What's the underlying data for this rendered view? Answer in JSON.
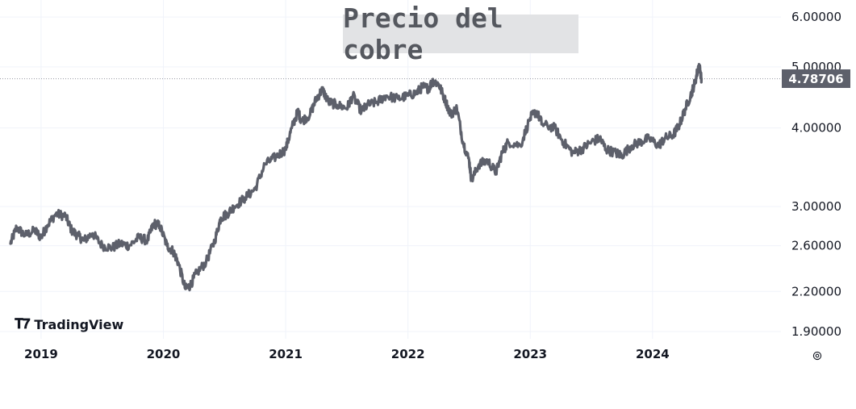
{
  "chart_data": {
    "type": "line",
    "title": "Precio del cobre",
    "y_scale": "log",
    "ylim": [
      1.85,
      6.2
    ],
    "xlim": [
      2018.75,
      2025.05
    ],
    "y_ticks": [
      "6.00000",
      "5.00000",
      "4.00000",
      "3.00000",
      "2.60000",
      "2.20000",
      "1.90000"
    ],
    "x_ticks": [
      "2019",
      "2020",
      "2021",
      "2022",
      "2023",
      "2024"
    ],
    "last_value": "4.78706",
    "grid": true,
    "line_color": "#5d606b",
    "series": [
      {
        "x": [
          2018.75,
          2018.8,
          2018.87,
          2018.95,
          2019.0,
          2019.05,
          2019.12,
          2019.2,
          2019.25,
          2019.3,
          2019.35,
          2019.42,
          2019.5,
          2019.58,
          2019.65,
          2019.72,
          2019.8,
          2019.87,
          2019.92,
          2019.97,
          2020.03,
          2020.08,
          2020.12,
          2020.18,
          2020.22,
          2020.27,
          2020.35,
          2020.42,
          2020.47,
          2020.52,
          2020.58,
          2020.67,
          2020.75,
          2020.83,
          2020.92,
          2021.0,
          2021.05,
          2021.1,
          2021.13,
          2021.2,
          2021.25,
          2021.3,
          2021.35,
          2021.42,
          2021.5,
          2021.55,
          2021.62,
          2021.67,
          2021.75,
          2021.82,
          2021.92,
          2022.0,
          2022.07,
          2022.12,
          2022.17,
          2022.2,
          2022.25,
          2022.3,
          2022.35,
          2022.4,
          2022.45,
          2022.5,
          2022.52,
          2022.58,
          2022.65,
          2022.72,
          2022.77,
          2022.82,
          2022.92,
          2023.0,
          2023.05,
          2023.1,
          2023.2,
          2023.27,
          2023.35,
          2023.42,
          2023.5,
          2023.57,
          2023.62,
          2023.7,
          2023.75,
          2023.83,
          2023.9,
          2023.97,
          2024.05,
          2024.1,
          2024.17,
          2024.22,
          2024.27,
          2024.32,
          2024.35,
          2024.38,
          2024.4
        ],
        "values": [
          2.62,
          2.78,
          2.7,
          2.75,
          2.68,
          2.8,
          2.92,
          2.9,
          2.75,
          2.7,
          2.65,
          2.72,
          2.6,
          2.58,
          2.62,
          2.6,
          2.68,
          2.65,
          2.82,
          2.8,
          2.6,
          2.55,
          2.45,
          2.22,
          2.25,
          2.35,
          2.45,
          2.65,
          2.88,
          2.92,
          3.0,
          3.1,
          3.2,
          3.5,
          3.6,
          3.7,
          4.0,
          4.25,
          4.1,
          4.2,
          4.45,
          4.6,
          4.4,
          4.35,
          4.3,
          4.5,
          4.25,
          4.35,
          4.4,
          4.5,
          4.45,
          4.5,
          4.55,
          4.65,
          4.62,
          4.75,
          4.7,
          4.45,
          4.2,
          4.3,
          3.8,
          3.55,
          3.3,
          3.5,
          3.55,
          3.4,
          3.65,
          3.8,
          3.75,
          4.15,
          4.25,
          4.05,
          4.0,
          3.8,
          3.65,
          3.7,
          3.8,
          3.85,
          3.7,
          3.65,
          3.62,
          3.75,
          3.8,
          3.85,
          3.75,
          3.85,
          3.9,
          4.05,
          4.3,
          4.55,
          4.75,
          5.05,
          4.79
        ]
      }
    ]
  }
}
